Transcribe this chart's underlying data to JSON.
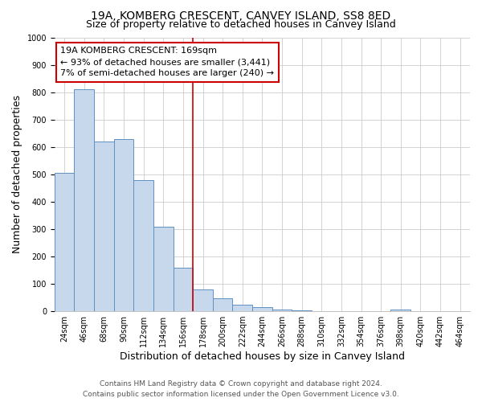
{
  "title": "19A, KOMBERG CRESCENT, CANVEY ISLAND, SS8 8ED",
  "subtitle": "Size of property relative to detached houses in Canvey Island",
  "xlabel": "Distribution of detached houses by size in Canvey Island",
  "ylabel": "Number of detached properties",
  "bin_labels": [
    "24sqm",
    "46sqm",
    "68sqm",
    "90sqm",
    "112sqm",
    "134sqm",
    "156sqm",
    "178sqm",
    "200sqm",
    "222sqm",
    "244sqm",
    "266sqm",
    "288sqm",
    "310sqm",
    "332sqm",
    "354sqm",
    "376sqm",
    "398sqm",
    "420sqm",
    "442sqm",
    "464sqm"
  ],
  "bar_heights": [
    505,
    810,
    620,
    630,
    480,
    310,
    160,
    80,
    47,
    25,
    15,
    5,
    3,
    1,
    1,
    1,
    1,
    5,
    1,
    1,
    1
  ],
  "bar_color": "#c8d8ec",
  "bar_edge_color": "#6090c0",
  "vline_x": 7,
  "vline_color": "#cc0000",
  "annotation_title": "19A KOMBERG CRESCENT: 169sqm",
  "annotation_line1": "← 93% of detached houses are smaller (3,441)",
  "annotation_line2": "7% of semi-detached houses are larger (240) →",
  "annotation_box_color": "#ffffff",
  "annotation_box_edge": "#cc0000",
  "ylim": [
    0,
    1000
  ],
  "yticks": [
    0,
    100,
    200,
    300,
    400,
    500,
    600,
    700,
    800,
    900,
    1000
  ],
  "footer1": "Contains HM Land Registry data © Crown copyright and database right 2024.",
  "footer2": "Contains public sector information licensed under the Open Government Licence v3.0.",
  "background_color": "#ffffff",
  "grid_color": "#cccccc",
  "title_fontsize": 10,
  "subtitle_fontsize": 9,
  "axis_label_fontsize": 9,
  "tick_fontsize": 7,
  "annotation_fontsize": 8,
  "footer_fontsize": 6.5
}
